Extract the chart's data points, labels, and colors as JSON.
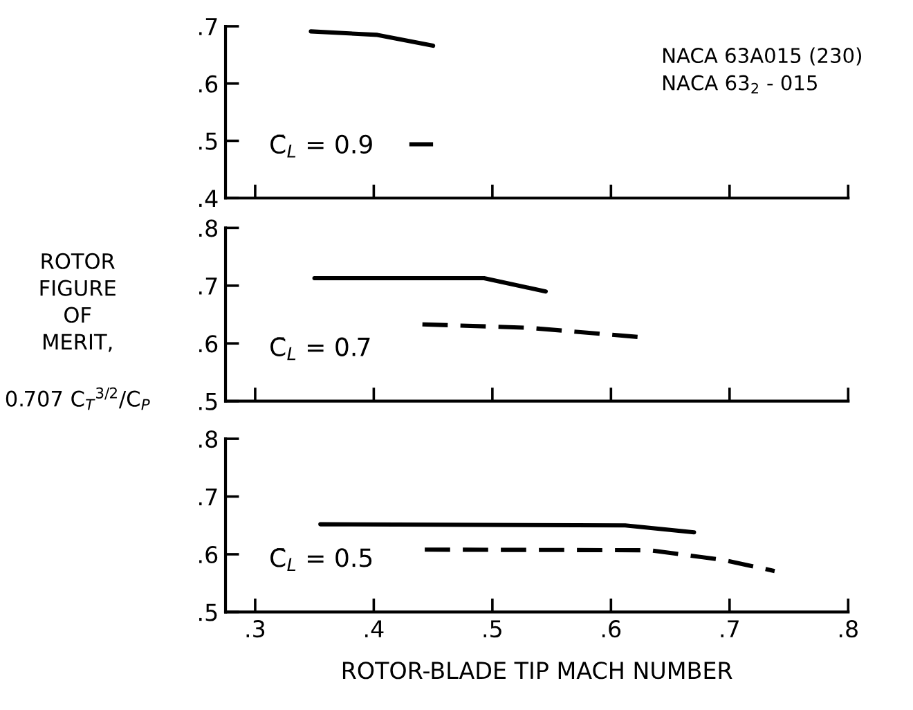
{
  "chart_data": [
    {
      "type": "line",
      "xlim": [
        0.275,
        0.8
      ],
      "xticks": [
        {
          "value": 0.3,
          "label": null
        },
        {
          "value": 0.4,
          "label": null
        },
        {
          "value": 0.5,
          "label": null
        },
        {
          "value": 0.6,
          "label": null
        },
        {
          "value": 0.7,
          "label": null
        },
        {
          "value": 0.8,
          "label": null
        }
      ],
      "ylim": [
        0.4,
        0.7
      ],
      "yticks": [
        {
          "value": 0.4,
          "label": ".4"
        },
        {
          "value": 0.5,
          "label": ".5"
        },
        {
          "value": 0.6,
          "label": ".6"
        },
        {
          "value": 0.7,
          "label": ".7"
        }
      ],
      "tick_labels": "y",
      "series": [
        {
          "color": "#000000",
          "line_style": "solid",
          "x": [
            0.347,
            0.403,
            0.45
          ],
          "values": [
            0.691,
            0.685,
            0.666
          ]
        },
        {
          "color": "#000000",
          "line_style": "dashed",
          "x": [
            0.43,
            0.45
          ],
          "values": [
            0.494,
            0.494
          ]
        }
      ],
      "annotations": [
        "C̄$_{L}$ = 0.9",
        "NACA 63A015 (230)",
        "NACA 63$_{2}$ - 015"
      ]
    },
    {
      "type": "line",
      "xlim": [
        0.275,
        0.8
      ],
      "xticks": [
        {
          "value": 0.3,
          "label": null
        },
        {
          "value": 0.4,
          "label": null
        },
        {
          "value": 0.5,
          "label": null
        },
        {
          "value": 0.6,
          "label": null
        },
        {
          "value": 0.7,
          "label": null
        },
        {
          "value": 0.8,
          "label": null
        }
      ],
      "ylim": [
        0.5,
        0.8
      ],
      "yticks": [
        {
          "value": 0.5,
          "label": ".5"
        },
        {
          "value": 0.6,
          "label": ".6"
        },
        {
          "value": 0.7,
          "label": ".7"
        },
        {
          "value": 0.8,
          "label": ".8"
        }
      ],
      "tick_labels": "y",
      "ylabel": "ROTOR\nFIGURE\nOF\nMERIT,\n\n0.707 C$_{T}$$^{3/2}$/C$_{P}$",
      "series": [
        {
          "color": "#000000",
          "line_style": "solid",
          "x": [
            0.35,
            0.493,
            0.545
          ],
          "values": [
            0.713,
            0.713,
            0.69
          ]
        },
        {
          "color": "#000000",
          "line_style": "dashed",
          "x": [
            0.441,
            0.531,
            0.624
          ],
          "values": [
            0.633,
            0.627,
            0.611
          ]
        }
      ],
      "annotations": [
        "C̄$_{L}$ = 0.7"
      ]
    },
    {
      "type": "line",
      "xlim": [
        0.275,
        0.8
      ],
      "xticks": [
        {
          "value": 0.3,
          "label": ".3"
        },
        {
          "value": 0.4,
          "label": ".4"
        },
        {
          "value": 0.5,
          "label": ".5"
        },
        {
          "value": 0.6,
          "label": ".6"
        },
        {
          "value": 0.7,
          "label": ".7"
        },
        {
          "value": 0.8,
          "label": ".8"
        }
      ],
      "ylim": [
        0.5,
        0.8
      ],
      "yticks": [
        {
          "value": 0.5,
          "label": ".5"
        },
        {
          "value": 0.6,
          "label": ".6"
        },
        {
          "value": 0.7,
          "label": ".7"
        },
        {
          "value": 0.8,
          "label": ".8"
        }
      ],
      "xlabel": "ROTOR-BLADE TIP MACH NUMBER",
      "series": [
        {
          "color": "#000000",
          "line_style": "solid",
          "x": [
            0.355,
            0.612,
            0.67
          ],
          "values": [
            0.652,
            0.65,
            0.638
          ]
        },
        {
          "color": "#000000",
          "line_style": "dashed",
          "x": [
            0.443,
            0.633,
            0.695,
            0.738
          ],
          "values": [
            0.608,
            0.607,
            0.59,
            0.571
          ]
        }
      ],
      "annotations": [
        "C̄$_{L}$ = 0.5"
      ]
    }
  ]
}
